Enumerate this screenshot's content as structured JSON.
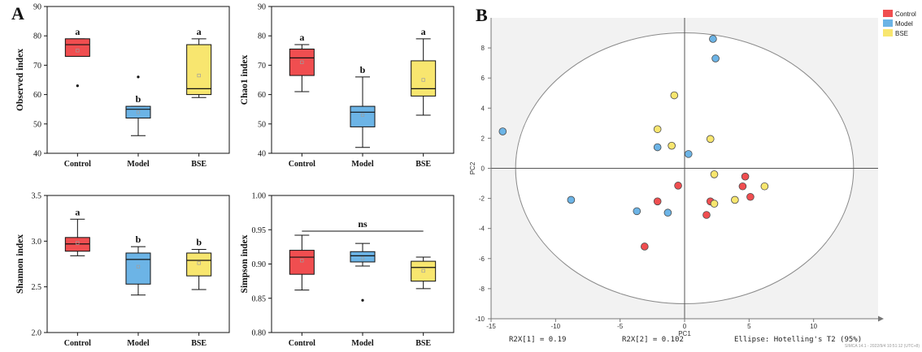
{
  "panel_labels": {
    "a": "A",
    "b": "B"
  },
  "colors": {
    "control": "#f04e50",
    "model": "#6cb4e6",
    "bse": "#f8e66f",
    "mean_marker": "#9e9e9e"
  },
  "chart_data": [
    {
      "id": "observed",
      "type": "box",
      "ylabel": "Observed index",
      "ylim": [
        40,
        90
      ],
      "yticks": [
        "40",
        "50",
        "60",
        "70",
        "80",
        "90"
      ],
      "categories": [
        "Control",
        "Model",
        "BSE"
      ],
      "boxes": [
        {
          "category": "Control",
          "min": 73,
          "q1": 73,
          "median": 77,
          "q3": 79,
          "max": 79,
          "mean": 75,
          "outliers": [
            63
          ],
          "sig": "a"
        },
        {
          "category": "Model",
          "min": 46,
          "q1": 52,
          "median": 55,
          "q3": 56,
          "max": 56,
          "mean": 54,
          "outliers": [
            66
          ],
          "sig": "b"
        },
        {
          "category": "BSE",
          "min": 59,
          "q1": 60,
          "median": 62,
          "q3": 77,
          "max": 79,
          "mean": 66.5,
          "outliers": [],
          "sig": "a"
        }
      ]
    },
    {
      "id": "chao1",
      "type": "box",
      "ylabel": "Chao1 index",
      "ylim": [
        40,
        90
      ],
      "yticks": [
        "40",
        "50",
        "60",
        "70",
        "80",
        "90"
      ],
      "categories": [
        "Control",
        "Model",
        "BSE"
      ],
      "boxes": [
        {
          "category": "Control",
          "min": 61,
          "q1": 66.5,
          "median": 72.5,
          "q3": 75.5,
          "max": 77,
          "mean": 71,
          "outliers": [],
          "sig": "a"
        },
        {
          "category": "Model",
          "min": 42,
          "q1": 49,
          "median": 54,
          "q3": 56,
          "max": 66,
          "mean": 53,
          "outliers": [],
          "sig": "b"
        },
        {
          "category": "BSE",
          "min": 53,
          "q1": 59.5,
          "median": 62,
          "q3": 71.5,
          "max": 79,
          "mean": 65,
          "outliers": [],
          "sig": "a"
        }
      ]
    },
    {
      "id": "shannon",
      "type": "box",
      "ylabel": "Shannon index",
      "ylim": [
        2.0,
        3.5
      ],
      "yticks": [
        "2.0",
        "2.5",
        "3.0",
        "3.5"
      ],
      "categories": [
        "Control",
        "Model",
        "BSE"
      ],
      "boxes": [
        {
          "category": "Control",
          "min": 2.84,
          "q1": 2.89,
          "median": 2.97,
          "q3": 3.04,
          "max": 3.24,
          "mean": 2.98,
          "outliers": [],
          "sig": "a"
        },
        {
          "category": "Model",
          "min": 2.41,
          "q1": 2.53,
          "median": 2.8,
          "q3": 2.87,
          "max": 2.94,
          "mean": 2.72,
          "outliers": [],
          "sig": "b"
        },
        {
          "category": "BSE",
          "min": 2.47,
          "q1": 2.62,
          "median": 2.79,
          "q3": 2.87,
          "max": 2.91,
          "mean": 2.76,
          "outliers": [],
          "sig": "b"
        }
      ]
    },
    {
      "id": "simpson",
      "type": "box",
      "ylabel": "Simpson index",
      "ylim": [
        0.8,
        1.0
      ],
      "yticks": [
        "0.80",
        "0.85",
        "0.90",
        "0.95",
        "1.00"
      ],
      "categories": [
        "Control",
        "Model",
        "BSE"
      ],
      "boxes": [
        {
          "category": "Control",
          "min": 0.862,
          "q1": 0.885,
          "median": 0.91,
          "q3": 0.92,
          "max": 0.942,
          "mean": 0.905,
          "outliers": [],
          "sig": ""
        },
        {
          "category": "Model",
          "min": 0.897,
          "q1": 0.903,
          "median": 0.912,
          "q3": 0.918,
          "max": 0.93,
          "mean": 0.908,
          "outliers": [
            0.847
          ],
          "sig": ""
        },
        {
          "category": "BSE",
          "min": 0.864,
          "q1": 0.875,
          "median": 0.895,
          "q3": 0.904,
          "max": 0.91,
          "mean": 0.89,
          "outliers": [],
          "sig": ""
        }
      ],
      "bracket": {
        "label": "ns",
        "value": 0.948
      }
    },
    {
      "id": "pca",
      "type": "scatter",
      "xlabel": "PC1",
      "ylabel": "PC2",
      "xlim": [
        -15,
        15
      ],
      "ylim": [
        -10,
        10
      ],
      "xticks": [
        "-15",
        "-10",
        "-5",
        "0",
        "5",
        "10"
      ],
      "yticks": [
        "-10",
        "-8",
        "-6",
        "-4",
        "-2",
        "0",
        "2",
        "4",
        "6",
        "8"
      ],
      "ellipse": {
        "rx": 13.1,
        "ry": 9.0
      },
      "legend": [
        "Control",
        "Model",
        "BSE"
      ],
      "series": [
        {
          "name": "Control",
          "points": [
            [
              -0.5,
              -1.15
            ],
            [
              -2.1,
              -2.2
            ],
            [
              -3.1,
              -5.2
            ],
            [
              1.7,
              -3.1
            ],
            [
              2.0,
              -2.2
            ],
            [
              4.5,
              -1.2
            ],
            [
              4.7,
              -0.55
            ],
            [
              5.1,
              -1.9
            ]
          ]
        },
        {
          "name": "Model",
          "points": [
            [
              -14.1,
              2.45
            ],
            [
              -8.8,
              -2.1
            ],
            [
              -3.7,
              -2.85
            ],
            [
              -1.3,
              -2.95
            ],
            [
              -2.1,
              1.4
            ],
            [
              0.3,
              0.95
            ],
            [
              2.2,
              8.6
            ],
            [
              2.4,
              7.3
            ]
          ]
        },
        {
          "name": "BSE",
          "points": [
            [
              -0.8,
              4.85
            ],
            [
              -2.1,
              2.6
            ],
            [
              -1.0,
              1.5
            ],
            [
              2.0,
              1.95
            ],
            [
              2.3,
              -0.4
            ],
            [
              2.3,
              -2.35
            ],
            [
              3.9,
              -2.1
            ],
            [
              6.2,
              -1.2
            ]
          ]
        }
      ]
    }
  ],
  "footer": {
    "r2x1": "R2X[1] = 0.19",
    "r2x2": "R2X[2] = 0.102",
    "ellipse": "Ellipse: Hotelling's T2 (95%)",
    "stamp": "SIMCA 14.1 - 2022/9/4 10:51:12 (UTC+8)"
  }
}
